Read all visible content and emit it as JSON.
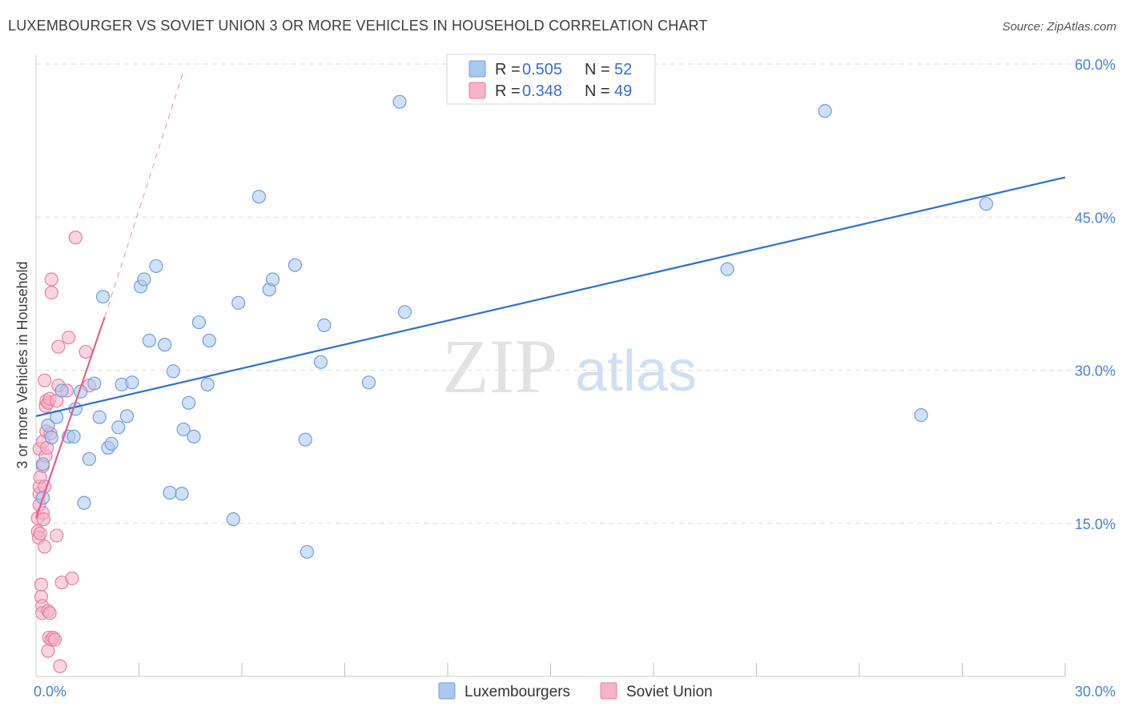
{
  "header": {
    "title": "LUXEMBOURGER VS SOVIET UNION 3 OR MORE VEHICLES IN HOUSEHOLD CORRELATION CHART",
    "source": "Source: ZipAtlas.com"
  },
  "watermark": {
    "part1": "ZIP",
    "part2": "atlas"
  },
  "legend": {
    "r_label": "R =",
    "n_label": "N =",
    "rows": [
      {
        "r": "0.505",
        "n": "52",
        "color": "#a9c7ef"
      },
      {
        "r": "0.348",
        "n": "49",
        "color": "#f5b3c7"
      }
    ]
  },
  "bottom_legend": {
    "items": [
      {
        "label": "Luxembourgers",
        "color": "#a9c7ef"
      },
      {
        "label": "Soviet Union",
        "color": "#f5b3c7"
      }
    ]
  },
  "colors": {
    "blue_fill": "#a9c7ef",
    "blue_stroke": "#6f9fe0",
    "blue_line": "#2f6fd0",
    "pink_fill": "#f5b3c7",
    "pink_stroke": "#ea7fa0",
    "pink_line": "#e2608e",
    "grid": "#dddddd",
    "tick_text": "#4a7fd4"
  },
  "chart_data": {
    "type": "scatter",
    "ylabel": "3 or more Vehicles in Household",
    "xlim": [
      0,
      30
    ],
    "ylim": [
      0,
      60
    ],
    "x_tick_labels": [
      {
        "value": 0,
        "label": "0.0%"
      },
      {
        "value": 30,
        "label": "30.0%"
      }
    ],
    "y_tick_labels": [
      {
        "value": 15,
        "label": "15.0%"
      },
      {
        "value": 30,
        "label": "30.0%"
      },
      {
        "value": 45,
        "label": "45.0%"
      },
      {
        "value": 60,
        "label": "60.0%"
      }
    ],
    "grid": true,
    "legend_position": "top-center",
    "series": [
      {
        "name": "Luxembourgers",
        "r": 0.505,
        "n": 52,
        "trend": {
          "x": [
            0.0,
            30.0
          ],
          "y": [
            25.5,
            48.9
          ],
          "style": "solid"
        },
        "points": [
          [
            0.2,
            17.5
          ],
          [
            0.2,
            20.8
          ],
          [
            0.35,
            24.6
          ],
          [
            0.45,
            23.4
          ],
          [
            0.6,
            25.4
          ],
          [
            0.75,
            28.0
          ],
          [
            0.95,
            23.5
          ],
          [
            1.1,
            23.5
          ],
          [
            1.15,
            26.2
          ],
          [
            1.3,
            27.9
          ],
          [
            1.4,
            17.0
          ],
          [
            1.55,
            21.3
          ],
          [
            1.7,
            28.7
          ],
          [
            1.85,
            25.4
          ],
          [
            1.95,
            37.2
          ],
          [
            2.1,
            22.4
          ],
          [
            2.2,
            22.8
          ],
          [
            2.4,
            24.4
          ],
          [
            2.5,
            28.6
          ],
          [
            2.65,
            25.5
          ],
          [
            2.8,
            28.8
          ],
          [
            3.05,
            38.2
          ],
          [
            3.15,
            38.9
          ],
          [
            3.3,
            32.9
          ],
          [
            3.5,
            40.2
          ],
          [
            3.75,
            32.5
          ],
          [
            3.9,
            18.0
          ],
          [
            4.0,
            29.9
          ],
          [
            4.25,
            17.9
          ],
          [
            4.3,
            24.2
          ],
          [
            4.45,
            26.8
          ],
          [
            4.6,
            23.5
          ],
          [
            4.75,
            34.7
          ],
          [
            5.0,
            28.6
          ],
          [
            5.05,
            32.9
          ],
          [
            5.75,
            15.4
          ],
          [
            5.9,
            36.6
          ],
          [
            6.5,
            47.0
          ],
          [
            6.8,
            37.9
          ],
          [
            6.9,
            38.9
          ],
          [
            7.55,
            40.3
          ],
          [
            7.85,
            23.2
          ],
          [
            7.9,
            12.2
          ],
          [
            8.4,
            34.4
          ],
          [
            8.3,
            30.8
          ],
          [
            9.7,
            28.8
          ],
          [
            10.6,
            56.3
          ],
          [
            10.75,
            35.7
          ],
          [
            20.15,
            39.9
          ],
          [
            23.0,
            55.4
          ],
          [
            25.8,
            25.6
          ],
          [
            27.7,
            46.3
          ]
        ]
      },
      {
        "name": "Soviet Union",
        "r": 0.348,
        "n": 49,
        "trend": {
          "x": [
            0.0,
            2.0
          ],
          "y": [
            15.5,
            35.2
          ],
          "style": "solid",
          "extension": {
            "x": [
              2.0,
              4.3
            ],
            "y": [
              35.2,
              59.3
            ],
            "style": "dashed"
          }
        },
        "points": [
          [
            0.05,
            14.2
          ],
          [
            0.05,
            15.5
          ],
          [
            0.08,
            13.6
          ],
          [
            0.1,
            16.8
          ],
          [
            0.1,
            17.9
          ],
          [
            0.1,
            18.6
          ],
          [
            0.1,
            22.3
          ],
          [
            0.12,
            19.5
          ],
          [
            0.12,
            14.0
          ],
          [
            0.15,
            9.0
          ],
          [
            0.15,
            7.8
          ],
          [
            0.18,
            6.9
          ],
          [
            0.18,
            6.2
          ],
          [
            0.2,
            16.0
          ],
          [
            0.2,
            20.6
          ],
          [
            0.2,
            23.0
          ],
          [
            0.22,
            15.4
          ],
          [
            0.25,
            12.7
          ],
          [
            0.25,
            18.6
          ],
          [
            0.28,
            21.6
          ],
          [
            0.28,
            26.5
          ],
          [
            0.3,
            24.0
          ],
          [
            0.3,
            27.0
          ],
          [
            0.32,
            22.4
          ],
          [
            0.35,
            26.8
          ],
          [
            0.35,
            2.5
          ],
          [
            0.35,
            6.4
          ],
          [
            0.38,
            3.8
          ],
          [
            0.4,
            6.2
          ],
          [
            0.4,
            27.2
          ],
          [
            0.42,
            23.8
          ],
          [
            0.45,
            3.6
          ],
          [
            0.45,
            38.9
          ],
          [
            0.45,
            37.6
          ],
          [
            0.5,
            3.8
          ],
          [
            0.55,
            3.6
          ],
          [
            0.6,
            13.8
          ],
          [
            0.6,
            27.0
          ],
          [
            0.65,
            28.5
          ],
          [
            0.65,
            32.3
          ],
          [
            0.7,
            1.0
          ],
          [
            0.75,
            9.2
          ],
          [
            0.9,
            28.0
          ],
          [
            0.95,
            33.2
          ],
          [
            1.05,
            9.6
          ],
          [
            1.15,
            43.0
          ],
          [
            1.45,
            31.8
          ],
          [
            1.55,
            28.5
          ],
          [
            0.25,
            29.0
          ]
        ]
      }
    ]
  }
}
